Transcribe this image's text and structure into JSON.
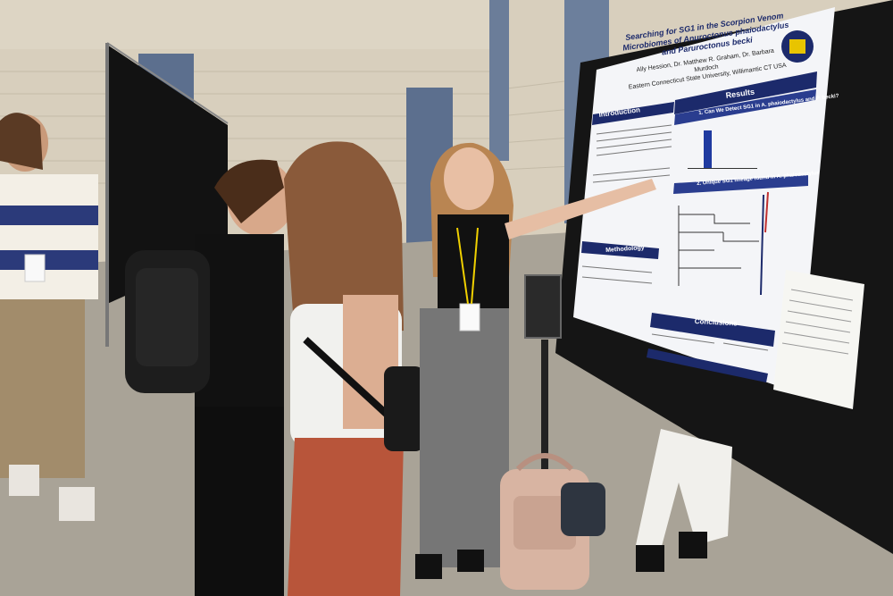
{
  "poster": {
    "title": "Searching for SG1 in the Scorpion Venom Microbiomes of Anuroctonus phaiodactylus and Paruroctonus becki",
    "authors": "Ally Hession, Dr. Matthew R. Graham, Dr. Barbara Murdoch",
    "affiliation": "Eastern Connecticut State University, Willimantic CT USA",
    "sections": {
      "introduction": "Introduction",
      "results": "Results",
      "methodology": "Methodology",
      "conclusions": "Conclusions"
    },
    "subheads": {
      "q1": "1. Can We Detect SG1 in A. phaiodactylus and P. becki?",
      "q2": "2. Unique SG1 lineage found in A. phaiodactylus"
    }
  },
  "colors": {
    "poster_navy": "#1c2a6b",
    "board_black": "#151515",
    "wall_beige": "#d8cfbd",
    "floor_gray": "#a9a397",
    "pillar_blue": "#5c6f8e"
  }
}
